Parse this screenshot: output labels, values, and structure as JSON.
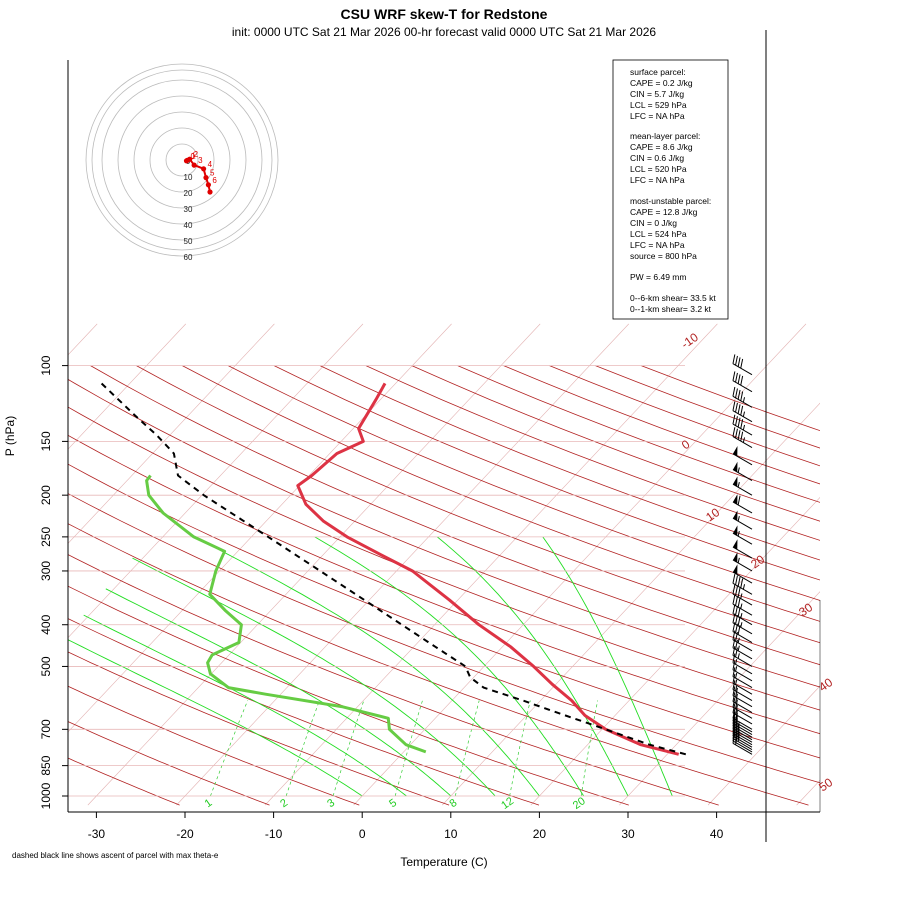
{
  "title": "CSU WRF skew-T for Redstone",
  "subtitle": "init: 0000 UTC Sat 21 Mar 2026     00-hr forecast valid 0000 UTC Sat 21 Mar 2026",
  "footnote": "dashed black line shows ascent of parcel with max theta-e",
  "chart_data": {
    "type": "line",
    "xlabel": "Temperature (C)",
    "ylabel": "P (hPa)",
    "x_ticks": [
      "-30",
      "-20",
      "-10",
      "0",
      "10",
      "20",
      "30",
      "40"
    ],
    "p_ticks": [
      "100",
      "150",
      "200",
      "250",
      "300",
      "400",
      "500",
      "700",
      "850",
      "1000"
    ],
    "pressure_scale": "log",
    "isotherm_labels": [
      "-10",
      "0",
      "10",
      "20",
      "30",
      "40",
      "50"
    ],
    "mixing_ratio_labels": [
      "1",
      "2",
      "3",
      "5",
      "8",
      "12",
      "20"
    ],
    "series": [
      {
        "key": "temperature",
        "color": "#dd3344",
        "points": [
          [
            800,
            31.3
          ],
          [
            760,
            26.0
          ],
          [
            700,
            20.4
          ],
          [
            650,
            16.6
          ],
          [
            600,
            13.5
          ],
          [
            550,
            9.6
          ],
          [
            500,
            5.6
          ],
          [
            450,
            0.9
          ],
          [
            400,
            -5.0
          ],
          [
            350,
            -11.0
          ],
          [
            300,
            -18.2
          ],
          [
            275,
            -23.5
          ],
          [
            250,
            -29.2
          ],
          [
            230,
            -33.5
          ],
          [
            210,
            -37.3
          ],
          [
            190,
            -40.2
          ],
          [
            180,
            -39.7
          ],
          [
            160,
            -39.2
          ],
          [
            150,
            -37.5
          ],
          [
            140,
            -39.4
          ],
          [
            120,
            -40.5
          ],
          [
            110,
            -41.2
          ]
        ]
      },
      {
        "key": "dewpoint",
        "color": "#66cc44",
        "points": [
          [
            790,
            2.5
          ],
          [
            760,
            -0.5
          ],
          [
            700,
            -4.0
          ],
          [
            660,
            -5.3
          ],
          [
            620,
            -11.8
          ],
          [
            580,
            -21.7
          ],
          [
            560,
            -26.6
          ],
          [
            520,
            -30.1
          ],
          [
            490,
            -31.6
          ],
          [
            470,
            -31.9
          ],
          [
            440,
            -30.2
          ],
          [
            400,
            -31.8
          ],
          [
            370,
            -35.2
          ],
          [
            340,
            -38.6
          ],
          [
            300,
            -40.4
          ],
          [
            270,
            -41.5
          ],
          [
            250,
            -46.5
          ],
          [
            220,
            -52.5
          ],
          [
            200,
            -56.0
          ],
          [
            185,
            -57.8
          ],
          [
            180,
            -57.9
          ]
        ]
      },
      {
        "key": "parcel",
        "color": "#000000",
        "dashed": true,
        "points": [
          [
            800,
            32.1
          ],
          [
            760,
            27.0
          ],
          [
            700,
            20.4
          ],
          [
            650,
            14.4
          ],
          [
            600,
            8.0
          ],
          [
            560,
            2.2
          ],
          [
            530,
            -0.4
          ],
          [
            500,
            -2.1
          ],
          [
            450,
            -7.6
          ],
          [
            400,
            -13.7
          ],
          [
            350,
            -20.6
          ],
          [
            300,
            -28.6
          ],
          [
            250,
            -38.1
          ],
          [
            200,
            -49.8
          ],
          [
            180,
            -54.8
          ],
          [
            160,
            -57.6
          ],
          [
            145,
            -61.5
          ],
          [
            130,
            -66.2
          ],
          [
            110,
            -73.2
          ]
        ]
      }
    ],
    "hodograph": {
      "rings_kt": [
        "0",
        "10",
        "20",
        "30",
        "40",
        "50",
        "60"
      ],
      "points": [
        {
          "u": 2.8,
          "v": -0.5,
          "label": "0"
        },
        {
          "u": 3.3,
          "v": -0.2,
          "label": "1"
        },
        {
          "u": 4.8,
          "v": 0.5,
          "label": "2"
        },
        {
          "u": 7.6,
          "v": -3.2,
          "label": "3"
        },
        {
          "u": 13.5,
          "v": -5.5,
          "label": "4"
        },
        {
          "u": 15.0,
          "v": -11.0,
          "label": "5"
        },
        {
          "u": 16.5,
          "v": -15.5,
          "label": "6"
        },
        {
          "u": 17.5,
          "v": -20.0,
          "label": ""
        }
      ]
    },
    "wind_barbs": [
      {
        "p": 800,
        "kt": 20,
        "dir": 300
      },
      {
        "p": 790,
        "kt": 20,
        "dir": 300
      },
      {
        "p": 780,
        "kt": 25,
        "dir": 300
      },
      {
        "p": 770,
        "kt": 25,
        "dir": 300
      },
      {
        "p": 760,
        "kt": 25,
        "dir": 300
      },
      {
        "p": 750,
        "kt": 25,
        "dir": 300
      },
      {
        "p": 740,
        "kt": 25,
        "dir": 300
      },
      {
        "p": 730,
        "kt": 25,
        "dir": 300
      },
      {
        "p": 720,
        "kt": 25,
        "dir": 300
      },
      {
        "p": 710,
        "kt": 20,
        "dir": 300
      },
      {
        "p": 700,
        "kt": 20,
        "dir": 300
      },
      {
        "p": 680,
        "kt": 20,
        "dir": 300
      },
      {
        "p": 660,
        "kt": 20,
        "dir": 300
      },
      {
        "p": 640,
        "kt": 20,
        "dir": 300
      },
      {
        "p": 620,
        "kt": 20,
        "dir": 300
      },
      {
        "p": 600,
        "kt": 15,
        "dir": 300
      },
      {
        "p": 580,
        "kt": 15,
        "dir": 300
      },
      {
        "p": 560,
        "kt": 15,
        "dir": 300
      },
      {
        "p": 540,
        "kt": 15,
        "dir": 300
      },
      {
        "p": 520,
        "kt": 15,
        "dir": 300
      },
      {
        "p": 500,
        "kt": 25,
        "dir": 300
      },
      {
        "p": 480,
        "kt": 25,
        "dir": 300
      },
      {
        "p": 460,
        "kt": 25,
        "dir": 300
      },
      {
        "p": 440,
        "kt": 30,
        "dir": 300
      },
      {
        "p": 420,
        "kt": 35,
        "dir": 300
      },
      {
        "p": 400,
        "kt": 35,
        "dir": 300
      },
      {
        "p": 380,
        "kt": 35,
        "dir": 300
      },
      {
        "p": 360,
        "kt": 35,
        "dir": 300
      },
      {
        "p": 340,
        "kt": 45,
        "dir": 300
      },
      {
        "p": 320,
        "kt": 50,
        "dir": 300
      },
      {
        "p": 300,
        "kt": 55,
        "dir": 300
      },
      {
        "p": 280,
        "kt": 50,
        "dir": 300
      },
      {
        "p": 260,
        "kt": 55,
        "dir": 300
      },
      {
        "p": 240,
        "kt": 55,
        "dir": 300
      },
      {
        "p": 220,
        "kt": 60,
        "dir": 300
      },
      {
        "p": 200,
        "kt": 55,
        "dir": 300
      },
      {
        "p": 185,
        "kt": 55,
        "dir": 300
      },
      {
        "p": 170,
        "kt": 50,
        "dir": 300
      },
      {
        "p": 155,
        "kt": 45,
        "dir": 300
      },
      {
        "p": 145,
        "kt": 45,
        "dir": 300
      },
      {
        "p": 135,
        "kt": 45,
        "dir": 300
      },
      {
        "p": 125,
        "kt": 45,
        "dir": 300
      },
      {
        "p": 115,
        "kt": 40,
        "dir": 300
      },
      {
        "p": 105,
        "kt": 40,
        "dir": 300
      }
    ]
  },
  "info_box": {
    "surface_heading": "surface parcel:",
    "surface_cape": "CAPE = 0.2 J/kg",
    "surface_cin": "CIN = 5.7 J/kg",
    "surface_lcl": "LCL = 529 hPa",
    "surface_lfc": "LFC = NA hPa",
    "mean_heading": "mean-layer parcel:",
    "mean_cape": "CAPE = 8.6 J/kg",
    "mean_cin": "CIN = 0.6 J/kg",
    "mean_lcl": "LCL = 520 hPa",
    "mean_lfc": "LFC = NA hPa",
    "mu_heading": "most-unstable parcel:",
    "mu_cape": "CAPE = 12.8 J/kg",
    "mu_cin": "CIN = 0 J/kg",
    "mu_lcl": "LCL = 524 hPa",
    "mu_lfc": "LFC = NA hPa",
    "mu_source": "source = 800 hPa",
    "pw": "PW =  6.49 mm",
    "shear_6km": "0--6-km shear= 33.5 kt",
    "shear_1km": "0--1-km shear= 3.2 kt"
  }
}
